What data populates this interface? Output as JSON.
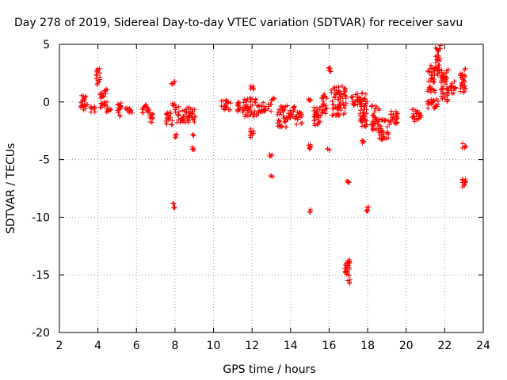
{
  "chart_data": {
    "type": "scatter",
    "title": "Day 278 of 2019, Sidereal Day-to-day VTEC variation (SDTVAR) for receiver savu",
    "xlabel": "GPS time / hours",
    "ylabel": "SDTVAR / TECUs",
    "xlim": [
      2,
      24
    ],
    "ylim": [
      -20,
      5
    ],
    "xticks": [
      2,
      4,
      6,
      8,
      10,
      12,
      14,
      16,
      18,
      20,
      22,
      24
    ],
    "yticks": [
      5,
      0,
      -5,
      -10,
      -15,
      -20
    ],
    "xtick_labels": [
      "2",
      "4",
      "6",
      "8",
      "10",
      "12",
      "14",
      "16",
      "18",
      "20",
      "22",
      "24"
    ],
    "ytick_labels": [
      "5",
      "0",
      "-5",
      "-10",
      "-15",
      "-20"
    ],
    "grid": true,
    "marker": "+",
    "colors": {
      "series": "#ff0000",
      "grid": "#a0a0a0",
      "axis": "#000000"
    },
    "clusters": [
      {
        "x": [
          3.1,
          3.5
        ],
        "y": [
          -0.7,
          0.6
        ]
      },
      {
        "x": [
          3.6,
          3.9
        ],
        "y": [
          -0.9,
          -0.4
        ]
      },
      {
        "x": [
          3.9,
          4.1
        ],
        "y": [
          1.4,
          2.9
        ]
      },
      {
        "x": [
          4.1,
          4.5
        ],
        "y": [
          -0.7,
          1.1
        ]
      },
      {
        "x": [
          4.4,
          4.7
        ],
        "y": [
          -1.0,
          -0.6
        ]
      },
      {
        "x": [
          5.0,
          5.2
        ],
        "y": [
          -1.3,
          0.0
        ]
      },
      {
        "x": [
          5.4,
          5.8
        ],
        "y": [
          -1.0,
          -0.4
        ]
      },
      {
        "x": [
          6.3,
          6.7
        ],
        "y": [
          -1.2,
          -0.2
        ]
      },
      {
        "x": [
          6.7,
          6.9
        ],
        "y": [
          -1.8,
          -1.0
        ]
      },
      {
        "x": [
          7.5,
          7.9
        ],
        "y": [
          -2.0,
          -0.8
        ]
      },
      {
        "x": [
          7.8,
          8.0
        ],
        "y": [
          1.5,
          1.8
        ]
      },
      {
        "x": [
          7.8,
          8.0
        ],
        "y": [
          -0.4,
          -0.1
        ]
      },
      {
        "x": [
          7.9,
          8.1
        ],
        "y": [
          -3.1,
          -2.8
        ]
      },
      {
        "x": [
          7.9,
          8.0
        ],
        "y": [
          -9.3,
          -8.6
        ]
      },
      {
        "x": [
          8.0,
          9.1
        ],
        "y": [
          -1.8,
          -0.4
        ]
      },
      {
        "x": [
          8.8,
          9.0
        ],
        "y": [
          -3.0,
          -2.8
        ]
      },
      {
        "x": [
          8.8,
          9.0
        ],
        "y": [
          -4.2,
          -3.9
        ]
      },
      {
        "x": [
          10.4,
          10.9
        ],
        "y": [
          -0.7,
          0.2
        ]
      },
      {
        "x": [
          11.2,
          11.6
        ],
        "y": [
          -1.0,
          0.0
        ]
      },
      {
        "x": [
          11.6,
          12.3
        ],
        "y": [
          -1.3,
          0.4
        ]
      },
      {
        "x": [
          11.9,
          12.1
        ],
        "y": [
          1.0,
          1.4
        ]
      },
      {
        "x": [
          11.9,
          12.1
        ],
        "y": [
          -3.2,
          -2.3
        ]
      },
      {
        "x": [
          12.3,
          13.0
        ],
        "y": [
          -0.9,
          0.0
        ]
      },
      {
        "x": [
          13.0,
          13.2
        ],
        "y": [
          0.1,
          0.4
        ]
      },
      {
        "x": [
          12.9,
          13.1
        ],
        "y": [
          -4.8,
          -4.5
        ]
      },
      {
        "x": [
          12.9,
          13.1
        ],
        "y": [
          -6.5,
          -6.4
        ]
      },
      {
        "x": [
          13.3,
          13.9
        ],
        "y": [
          -2.2,
          -0.3
        ]
      },
      {
        "x": [
          13.9,
          14.2
        ],
        "y": [
          -1.4,
          -0.2
        ]
      },
      {
        "x": [
          14.2,
          14.6
        ],
        "y": [
          -2.0,
          -0.7
        ]
      },
      {
        "x": [
          14.9,
          15.1
        ],
        "y": [
          0.1,
          0.3
        ]
      },
      {
        "x": [
          14.9,
          15.1
        ],
        "y": [
          -4.3,
          -3.7
        ]
      },
      {
        "x": [
          14.9,
          15.1
        ],
        "y": [
          -9.6,
          -9.3
        ]
      },
      {
        "x": [
          15.2,
          15.6
        ],
        "y": [
          -2.1,
          -0.4
        ]
      },
      {
        "x": [
          15.6,
          15.9
        ],
        "y": [
          -1.0,
          0.7
        ]
      },
      {
        "x": [
          15.9,
          16.1
        ],
        "y": [
          2.6,
          3.0
        ]
      },
      {
        "x": [
          15.9,
          16.1
        ],
        "y": [
          -4.2,
          -4.0
        ]
      },
      {
        "x": [
          16.1,
          16.9
        ],
        "y": [
          -1.2,
          1.4
        ]
      },
      {
        "x": [
          16.9,
          17.1
        ],
        "y": [
          -7.0,
          -6.7
        ]
      },
      {
        "x": [
          16.8,
          17.1
        ],
        "y": [
          -15.8,
          -13.6
        ]
      },
      {
        "x": [
          17.1,
          17.7
        ],
        "y": [
          -0.3,
          0.8
        ]
      },
      {
        "x": [
          17.6,
          18.0
        ],
        "y": [
          -2.2,
          0.8
        ]
      },
      {
        "x": [
          17.7,
          17.9
        ],
        "y": [
          -3.6,
          -3.3
        ]
      },
      {
        "x": [
          17.9,
          18.1
        ],
        "y": [
          -9.5,
          -9.1
        ]
      },
      {
        "x": [
          18.2,
          18.6
        ],
        "y": [
          -2.6,
          -0.3
        ]
      },
      {
        "x": [
          18.6,
          19.1
        ],
        "y": [
          -3.3,
          -1.5
        ]
      },
      {
        "x": [
          19.1,
          19.6
        ],
        "y": [
          -2.0,
          -0.8
        ]
      },
      {
        "x": [
          20.3,
          20.8
        ],
        "y": [
          -1.7,
          -0.5
        ]
      },
      {
        "x": [
          21.1,
          21.7
        ],
        "y": [
          -0.6,
          0.3
        ]
      },
      {
        "x": [
          21.1,
          21.5
        ],
        "y": [
          0.8,
          3.2
        ]
      },
      {
        "x": [
          21.5,
          21.8
        ],
        "y": [
          2.3,
          4.9
        ]
      },
      {
        "x": [
          21.8,
          22.2
        ],
        "y": [
          0.0,
          3.0
        ]
      },
      {
        "x": [
          22.3,
          22.6
        ],
        "y": [
          0.7,
          1.8
        ]
      },
      {
        "x": [
          22.8,
          23.1
        ],
        "y": [
          0.8,
          3.0
        ]
      },
      {
        "x": [
          22.9,
          23.1
        ],
        "y": [
          -4.0,
          -3.6
        ]
      },
      {
        "x": [
          22.9,
          23.1
        ],
        "y": [
          -7.5,
          -6.6
        ]
      }
    ]
  }
}
